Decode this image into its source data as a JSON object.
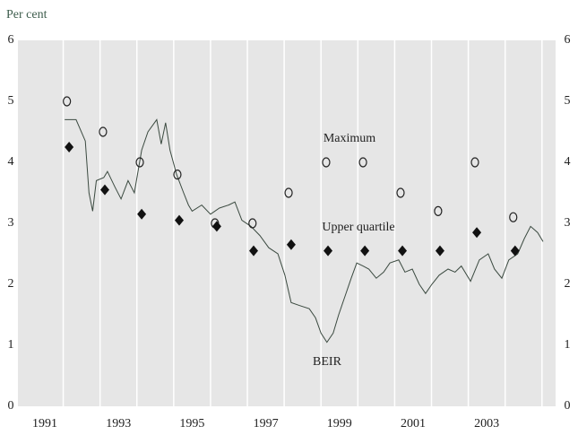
{
  "chart_data": {
    "type": "line",
    "y_unit_label": "Per cent",
    "xlim": [
      1990.27,
      2004.87
    ],
    "xticks": [
      1991,
      1993,
      1995,
      1997,
      1999,
      2001,
      2003
    ],
    "x_grid": [
      1991.5,
      1992.5,
      1993.5,
      1994.5,
      1995.5,
      1996.5,
      1997.5,
      1998.5,
      1999.5,
      2000.5,
      2001.5,
      2002.5,
      2003.5,
      2004.5
    ],
    "ylim": [
      0,
      6
    ],
    "yticks": [
      0,
      1,
      2,
      3,
      4,
      5,
      6
    ],
    "y2lim": [
      0,
      6
    ],
    "y2ticks": [
      0,
      1,
      2,
      3,
      4,
      5,
      6
    ],
    "background": "#e6e6e6",
    "series": [
      {
        "name": "BEIR",
        "marker": "line",
        "color": "#3b4a40",
        "x": [
          1991.54,
          1991.85,
          1992.1,
          1992.2,
          1992.3,
          1992.4,
          1992.6,
          1992.7,
          1992.9,
          1993.07,
          1993.26,
          1993.43,
          1993.63,
          1993.8,
          1994.04,
          1994.16,
          1994.28,
          1994.4,
          1994.58,
          1994.77,
          1994.9,
          1995.0,
          1995.26,
          1995.5,
          1995.74,
          1995.99,
          1996.16,
          1996.35,
          1996.6,
          1996.84,
          1997.08,
          1997.33,
          1997.52,
          1997.69,
          1997.93,
          1998.18,
          1998.35,
          1998.5,
          1998.66,
          1998.83,
          1998.98,
          1999.15,
          1999.32,
          1999.47,
          1999.64,
          1999.8,
          2000.0,
          2000.2,
          2000.37,
          2000.61,
          2000.78,
          2000.98,
          2001.17,
          2001.34,
          2001.51,
          2001.71,
          2001.95,
          2002.14,
          2002.31,
          2002.56,
          2002.8,
          2003.04,
          2003.21,
          2003.41,
          2003.6,
          2003.84,
          2004.02,
          2004.19,
          2004.38,
          2004.53
        ],
        "values": [
          4.7,
          4.7,
          4.35,
          3.5,
          3.2,
          3.7,
          3.75,
          3.85,
          3.6,
          3.4,
          3.7,
          3.5,
          4.2,
          4.5,
          4.7,
          4.3,
          4.65,
          4.2,
          3.8,
          3.5,
          3.3,
          3.2,
          3.3,
          3.15,
          3.25,
          3.3,
          3.35,
          3.05,
          2.95,
          2.8,
          2.6,
          2.5,
          2.15,
          1.7,
          1.65,
          1.6,
          1.45,
          1.2,
          1.05,
          1.2,
          1.5,
          1.8,
          2.1,
          2.35,
          2.3,
          2.25,
          2.1,
          2.2,
          2.35,
          2.4,
          2.2,
          2.25,
          2.0,
          1.85,
          2.0,
          2.15,
          2.25,
          2.2,
          2.3,
          2.05,
          2.4,
          2.5,
          2.25,
          2.1,
          2.4,
          2.5,
          2.75,
          2.95,
          2.85,
          2.7
        ]
      },
      {
        "name": "Maximum",
        "marker": "circle-o",
        "color": "#222222",
        "x": [
          1991.6,
          1992.58,
          1993.58,
          1994.6,
          1995.62,
          1996.64,
          1997.62,
          1998.64,
          1999.64,
          2000.66,
          2001.68,
          2002.68,
          2003.72
        ],
        "values": [
          5.0,
          4.5,
          4.0,
          3.8,
          3.0,
          3.0,
          3.5,
          4.0,
          4.0,
          3.5,
          3.2,
          4.0,
          3.1
        ]
      },
      {
        "name": "Upper quartile",
        "marker": "diamond",
        "color": "#111111",
        "x": [
          1991.66,
          1992.63,
          1993.63,
          1994.65,
          1995.67,
          1996.67,
          1997.69,
          1998.69,
          1999.69,
          2000.71,
          2001.73,
          2002.73,
          2003.77
        ],
        "values": [
          4.25,
          3.55,
          3.15,
          3.05,
          2.95,
          2.55,
          2.65,
          2.55,
          2.55,
          2.55,
          2.55,
          2.85,
          2.55
        ]
      }
    ]
  }
}
